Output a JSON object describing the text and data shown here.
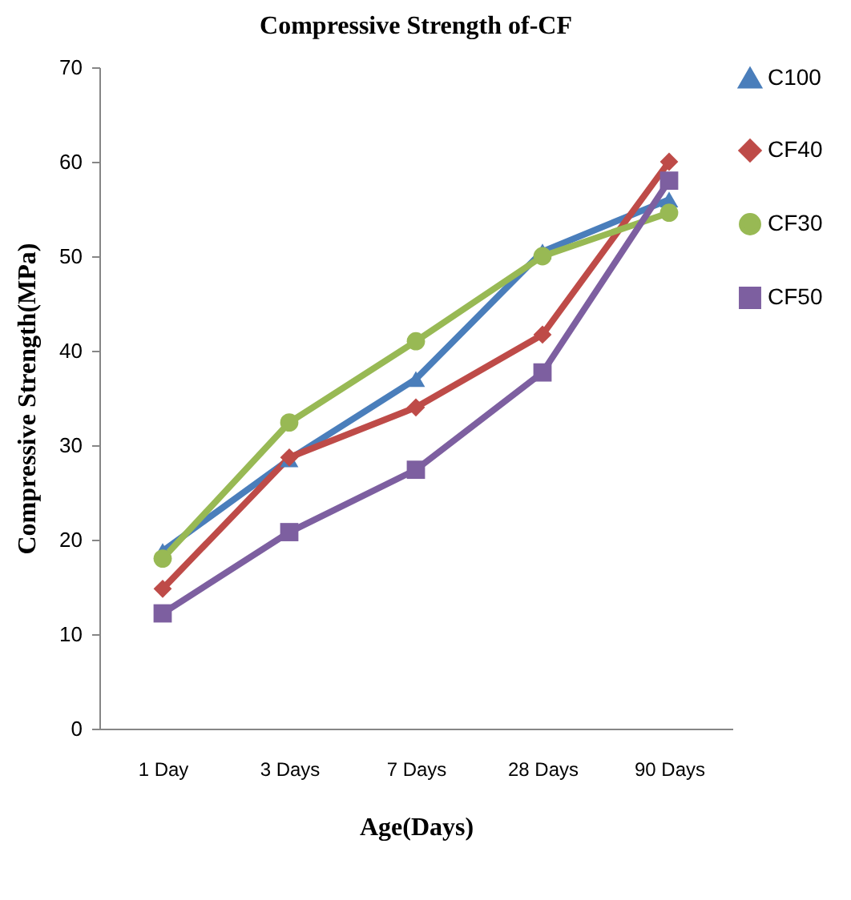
{
  "chart_data": {
    "type": "line",
    "title": "Compressive Strength of-CF",
    "xlabel": "Age(Days)",
    "ylabel": "Compressive Strength(MPa)",
    "categories": [
      "1 Day",
      "3 Days",
      "7 Days",
      "28 Days",
      "90 Days"
    ],
    "series": [
      {
        "name": "C100",
        "color": "#4a7ebb",
        "marker": "triangle",
        "values": [
          18.8,
          28.5,
          37,
          50.5,
          56
        ]
      },
      {
        "name": "CF40",
        "color": "#be4b48",
        "marker": "diamond",
        "values": [
          14.8,
          28.7,
          34,
          41.7,
          60
        ]
      },
      {
        "name": "CF30",
        "color": "#98b954",
        "marker": "circle",
        "values": [
          18,
          32.4,
          41,
          50,
          54.6
        ]
      },
      {
        "name": "CF50",
        "color": "#7d5fa0",
        "marker": "square",
        "values": [
          12.2,
          20.8,
          27.4,
          37.7,
          58
        ]
      }
    ],
    "ylim": [
      0,
      70
    ],
    "yticks": [
      0,
      10,
      20,
      30,
      40,
      50,
      60,
      70
    ],
    "grid": false,
    "legend": "right",
    "line_style": "solid"
  }
}
